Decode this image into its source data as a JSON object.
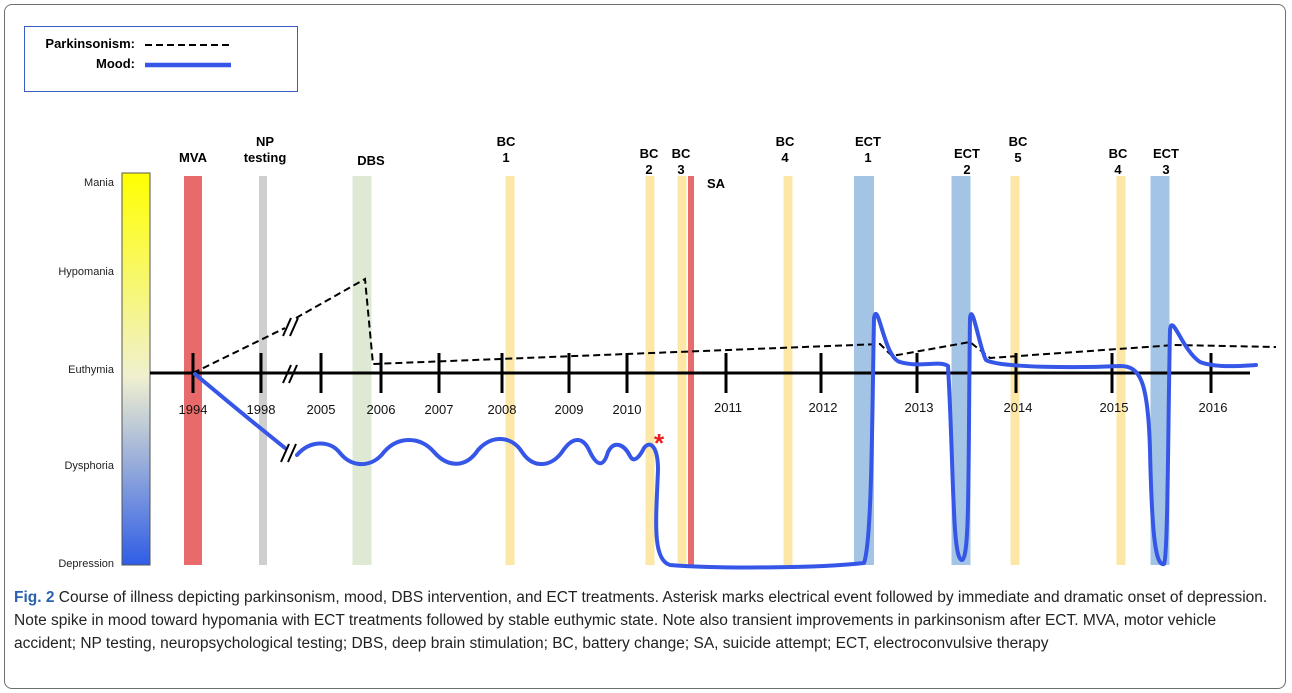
{
  "legend": {
    "parkinsonism_label": "Parkinsonism:",
    "mood_label": "Mood:"
  },
  "chart_data": {
    "type": "line",
    "title": "",
    "xlabel": "",
    "ylabel": "",
    "x_ticks": [
      "1994",
      "1998",
      "2005",
      "2006",
      "2007",
      "2008",
      "2009",
      "2010",
      "2011",
      "2012",
      "2013",
      "2014",
      "2015",
      "2016"
    ],
    "y_levels": [
      "Mania",
      "Hypomania",
      "Euthymia",
      "Dysphoria",
      "Depression"
    ],
    "y_scale_note_colors": {
      "top": "#ffff00",
      "middle": "#f0f0d0",
      "bottom": "#2f5de6"
    },
    "events": [
      {
        "label": "MVA",
        "x": "1994",
        "color": "#e86a6a"
      },
      {
        "label": "NP testing",
        "x": "1998",
        "color": "#cfcfcf"
      },
      {
        "label": "DBS",
        "x": "2006",
        "color": "#dde9d3"
      },
      {
        "label": "BC 1",
        "x": "2008",
        "color": "#fde7a6"
      },
      {
        "label": "BC 2",
        "x": "2010.5",
        "color": "#fde7a6"
      },
      {
        "label": "BC 3",
        "x": "2010.8",
        "color": "#fde7a6"
      },
      {
        "label": "SA",
        "x": "2010.9",
        "color": "#e86a6a"
      },
      {
        "label": "BC 4",
        "x": "2011.6",
        "color": "#fde7a6"
      },
      {
        "label": "ECT 1",
        "x": "2012.4",
        "color": "#a3c4e4"
      },
      {
        "label": "ECT 2",
        "x": "2013.4",
        "color": "#a3c4e4"
      },
      {
        "label": "BC 5",
        "x": "2014.0",
        "color": "#fde7a6"
      },
      {
        "label": "BC 4",
        "x": "2015.1",
        "color": "#fde7a6"
      },
      {
        "label": "ECT 3",
        "x": "2015.5",
        "color": "#a3c4e4"
      }
    ],
    "series": [
      {
        "name": "Parkinsonism",
        "style": "dashed",
        "color": "#000000",
        "description_points": [
          [
            "1994",
            "Euthymia"
          ],
          [
            "2005",
            "Hypomania-low"
          ],
          [
            "2006",
            "Hypomania"
          ],
          [
            "2006",
            "Euthymia"
          ],
          [
            "2012.5",
            "Euthymia+"
          ],
          [
            "2016.5",
            "Euthymia+"
          ]
        ]
      },
      {
        "name": "Mood",
        "style": "solid",
        "color": "#3656e8",
        "description_points": [
          [
            "1994",
            "Euthymia"
          ],
          [
            "1998",
            "Dysphoria"
          ],
          [
            "2010.5",
            "Dysphoria"
          ],
          [
            "2010.7",
            "Depression"
          ],
          [
            "2012.4",
            "Depression"
          ],
          [
            "2012.5",
            "Hypomania-low"
          ],
          [
            "2013.3",
            "Euthymia"
          ],
          [
            "2013.4",
            "Depression"
          ],
          [
            "2013.5",
            "Hypomania-low"
          ],
          [
            "2015.4",
            "Euthymia"
          ],
          [
            "2015.5",
            "Depression"
          ],
          [
            "2015.6",
            "Hypomania-low"
          ],
          [
            "2016.5",
            "Euthymia"
          ]
        ]
      }
    ],
    "annotation": "*",
    "legend_position": "top-left"
  },
  "caption": {
    "fig_label": "Fig. 2",
    "text": " Course of illness depicting parkinsonism, mood, DBS intervention, and ECT treatments. Asterisk marks electrical event followed by immediate and dramatic onset of depression. Note spike in mood toward hypomania with ECT treatments followed by stable euthymic state. Note also transient improvements in parkinsonism after ECT. MVA, motor vehicle accident; NP testing, neuropsychological testing; DBS, deep brain stimulation; BC, battery change; SA, suicide attempt; ECT, electroconvulsive therapy"
  }
}
